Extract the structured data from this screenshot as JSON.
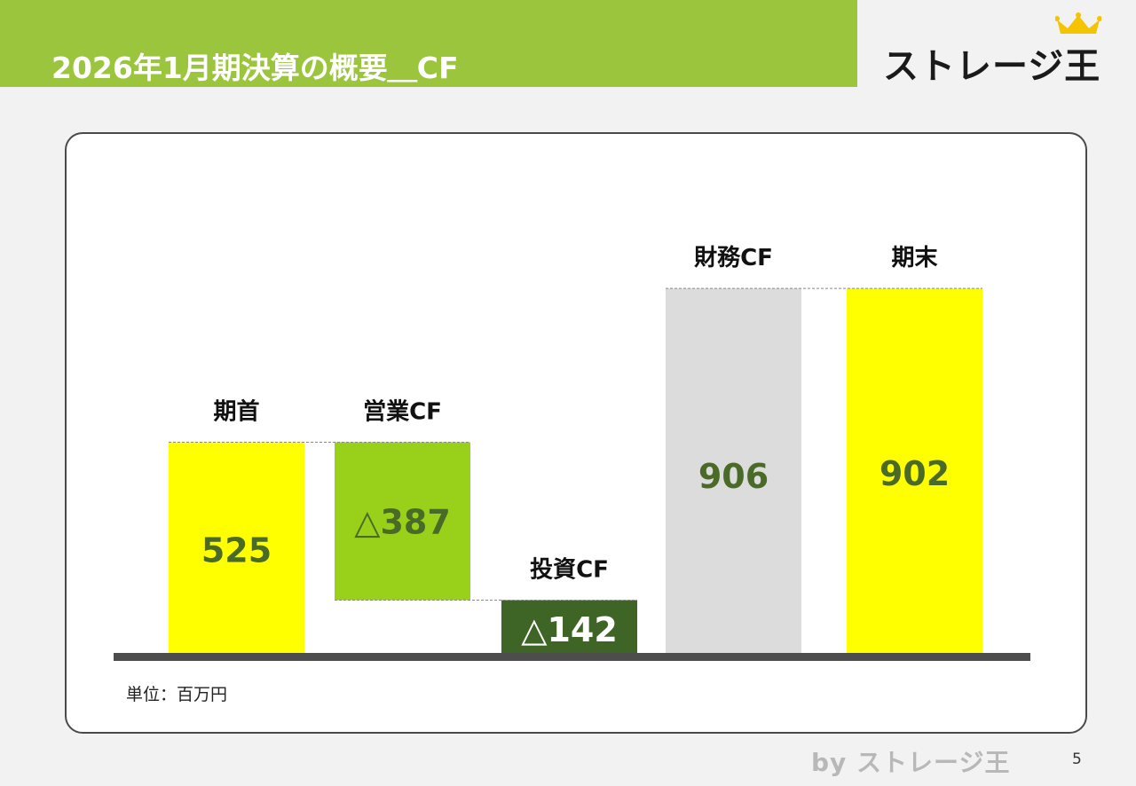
{
  "header": {
    "title": "2026年1月期決算の概要＿CF",
    "logo_text": "ストレージ王",
    "logo_icon": "crown-icon",
    "accent_color": "#9bc53d"
  },
  "chart_data": {
    "type": "waterfall",
    "unit": "単位：百万円",
    "categories": [
      "期首",
      "営業CF",
      "投資CF",
      "財務CF",
      "期末"
    ],
    "values": [
      525,
      -387,
      -142,
      906,
      902
    ],
    "value_labels": [
      "525",
      "△387",
      "△142",
      "906",
      "902"
    ],
    "bar_kinds": [
      "total",
      "delta",
      "delta",
      "delta",
      "total"
    ],
    "colors": [
      "#ffff00",
      "#99d11a",
      "#3e6426",
      "#dcdcdc",
      "#ffff00"
    ],
    "value_label_colors": [
      "#4a6a27",
      "#4a6a27",
      "#ffffff",
      "#4a6a27",
      "#4a6a27"
    ],
    "connectors": true,
    "legend": "none",
    "grid": false
  },
  "footer": {
    "brand": "by ストレージ王",
    "page_number": "5"
  }
}
